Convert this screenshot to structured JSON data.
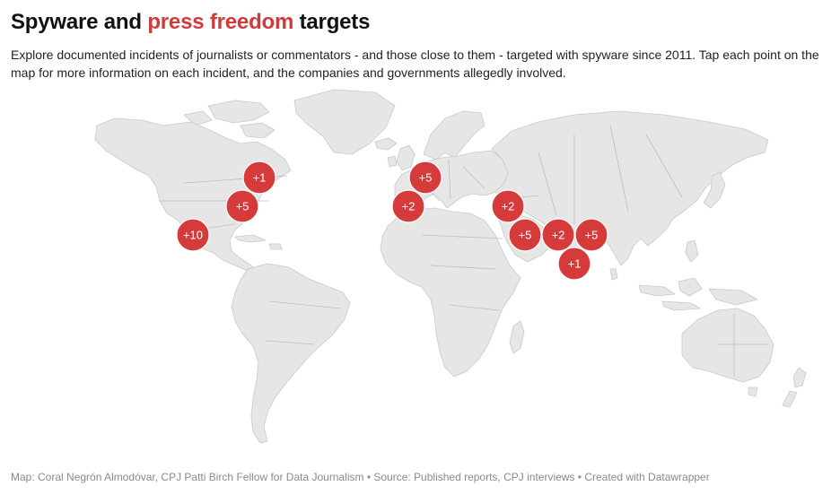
{
  "title": {
    "part1": "Spyware and ",
    "highlight": "press freedom",
    "part2": " targets",
    "highlight_color": "#d13a3a"
  },
  "description": "Explore documented incidents of journalists or commentators - and those close to them - targeted with spyware since 2011. Tap each point on the map for more information on each incident, and the companies and governments allegedly involved.",
  "map": {
    "marker_color": "#d63b3b",
    "land_color": "#e6e6e6",
    "markers": [
      {
        "label": "+1",
        "region": "Canada / northeastern US"
      },
      {
        "label": "+5",
        "region": "Eastern United States"
      },
      {
        "label": "+10",
        "region": "Mexico"
      },
      {
        "label": "+5",
        "region": "Western Europe"
      },
      {
        "label": "+2",
        "region": "Morocco / Spain"
      },
      {
        "label": "+2",
        "region": "Middle East"
      },
      {
        "label": "+5",
        "region": "Saudi Arabia"
      },
      {
        "label": "+2",
        "region": "UAE / Gulf"
      },
      {
        "label": "+5",
        "region": "India"
      },
      {
        "label": "+1",
        "region": "Indian Ocean / South India"
      }
    ]
  },
  "footer": "Map: Coral Negrón Almodóvar, CPJ Patti Birch Fellow for Data Journalism • Source: Published reports, CPJ interviews • Created with Datawrapper"
}
